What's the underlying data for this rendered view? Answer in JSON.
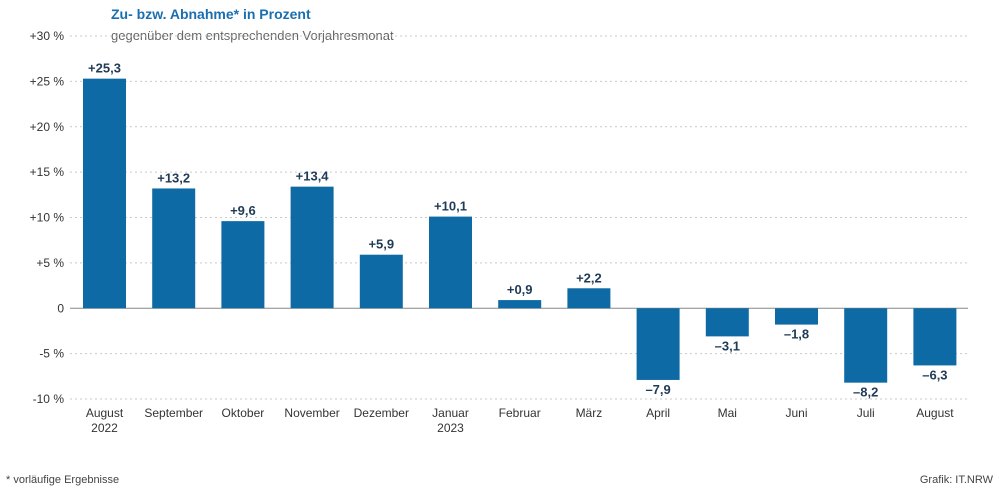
{
  "chart_data": {
    "type": "bar",
    "title": "Zu- bzw. Abnahme* in Prozent",
    "subtitle": "gegenüber dem entsprechenden Vorjahresmonat",
    "categories": [
      [
        "August",
        "2022"
      ],
      [
        "September"
      ],
      [
        "Oktober"
      ],
      [
        "November"
      ],
      [
        "Dezember"
      ],
      [
        "Januar",
        "2023"
      ],
      [
        "Februar"
      ],
      [
        "März"
      ],
      [
        "April"
      ],
      [
        "Mai"
      ],
      [
        "Juni"
      ],
      [
        "Juli"
      ],
      [
        "August"
      ]
    ],
    "values": [
      25.3,
      13.2,
      9.6,
      13.4,
      5.9,
      10.1,
      0.9,
      2.2,
      -7.9,
      -3.1,
      -1.8,
      -8.2,
      -6.3
    ],
    "data_labels": [
      "+25,3",
      "+13,2",
      "+9,6",
      "+13,4",
      "+5,9",
      "+10,1",
      "+0,9",
      "+2,2",
      "–7,9",
      "–3,1",
      "–1,8",
      "–8,2",
      "–6,3"
    ],
    "yticks": [
      30,
      25,
      20,
      15,
      10,
      5,
      0,
      -5,
      -10
    ],
    "ytick_labels": [
      "+30 %",
      "+25 %",
      "+20 %",
      "+15 %",
      "+10 %",
      "+5 %",
      "0",
      "-5 %",
      "-10 %"
    ],
    "ylim": [
      -10,
      30
    ],
    "grid": true,
    "bar_color": "#0d6aa4",
    "title_color": "#1a6fb0",
    "footnote": "*  vorläufige Ergebnisse",
    "source": "Grafik: IT.NRW"
  }
}
